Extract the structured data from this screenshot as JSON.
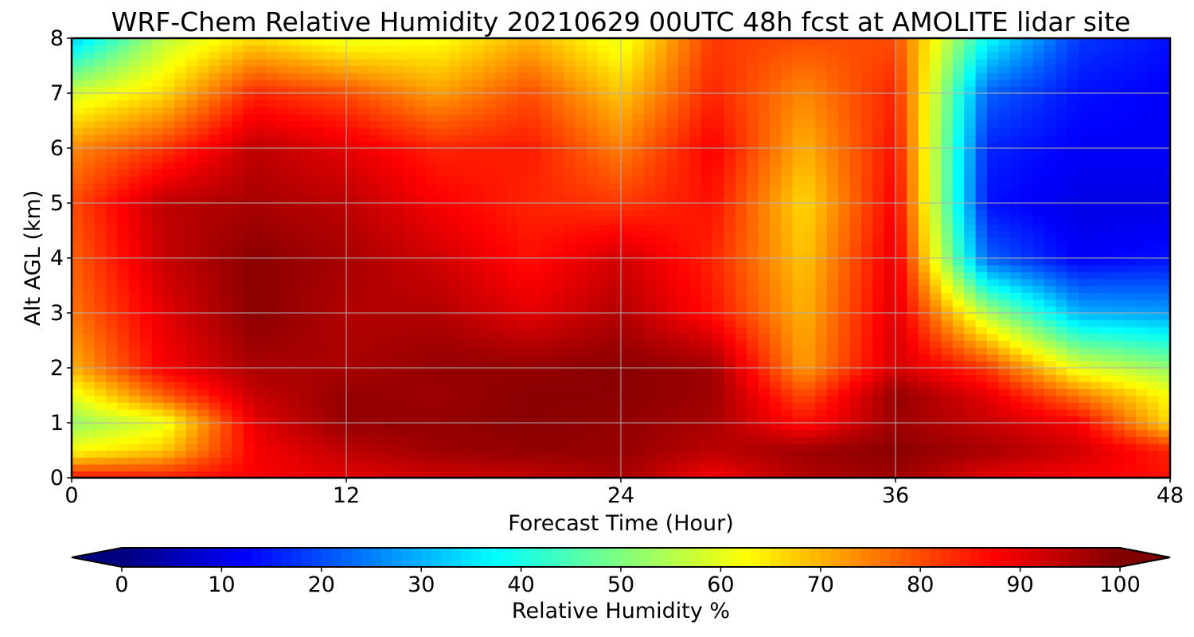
{
  "chart_data": {
    "type": "heatmap",
    "title": "WRF-Chem Relative Humidity 20210629 00UTC 48h fcst at AMOLITE lidar site",
    "xlabel": "Forecast Time (Hour)",
    "ylabel": "Alt AGL (km)",
    "xlim": [
      0,
      48
    ],
    "ylim": [
      0,
      8
    ],
    "x_ticks": [
      0,
      12,
      24,
      36,
      48
    ],
    "y_ticks": [
      0,
      1,
      2,
      3,
      4,
      5,
      6,
      7,
      8
    ],
    "grid": true,
    "colormap": "jet",
    "colorbar": {
      "label": "Relative Humidity %",
      "ticks": [
        0,
        10,
        20,
        30,
        40,
        50,
        60,
        70,
        80,
        90,
        100
      ],
      "range": [
        0,
        100
      ],
      "extend": "both",
      "placement": "bottom"
    },
    "x": [
      0,
      4,
      8,
      12,
      16,
      20,
      24,
      28,
      32,
      36,
      40,
      44,
      48
    ],
    "y": [
      0,
      0.5,
      1,
      1.5,
      2,
      3,
      4,
      5,
      6,
      7,
      8
    ],
    "values": [
      [
        86,
        85,
        88,
        90,
        92,
        93,
        96,
        88,
        95,
        97,
        90,
        88,
        86
      ],
      [
        62,
        68,
        88,
        94,
        97,
        98,
        98,
        94,
        97,
        99,
        96,
        92,
        84
      ],
      [
        52,
        60,
        90,
        98,
        98,
        99,
        98,
        96,
        86,
        97,
        93,
        88,
        66
      ],
      [
        60,
        78,
        93,
        98,
        97,
        99,
        99,
        97,
        80,
        98,
        90,
        76,
        62
      ],
      [
        70,
        88,
        96,
        96,
        98,
        98,
        99,
        97,
        72,
        92,
        82,
        60,
        52
      ],
      [
        76,
        90,
        99,
        95,
        95,
        90,
        95,
        86,
        70,
        91,
        55,
        30,
        28
      ],
      [
        78,
        93,
        99,
        96,
        92,
        86,
        92,
        84,
        68,
        90,
        22,
        12,
        14
      ],
      [
        80,
        94,
        96,
        94,
        88,
        84,
        82,
        86,
        66,
        88,
        14,
        10,
        10
      ],
      [
        74,
        82,
        94,
        90,
        84,
        85,
        75,
        88,
        70,
        86,
        16,
        12,
        12
      ],
      [
        58,
        66,
        84,
        80,
        72,
        80,
        68,
        84,
        74,
        84,
        22,
        14,
        12
      ],
      [
        32,
        56,
        66,
        60,
        62,
        70,
        60,
        82,
        80,
        80,
        38,
        18,
        14
      ]
    ]
  }
}
